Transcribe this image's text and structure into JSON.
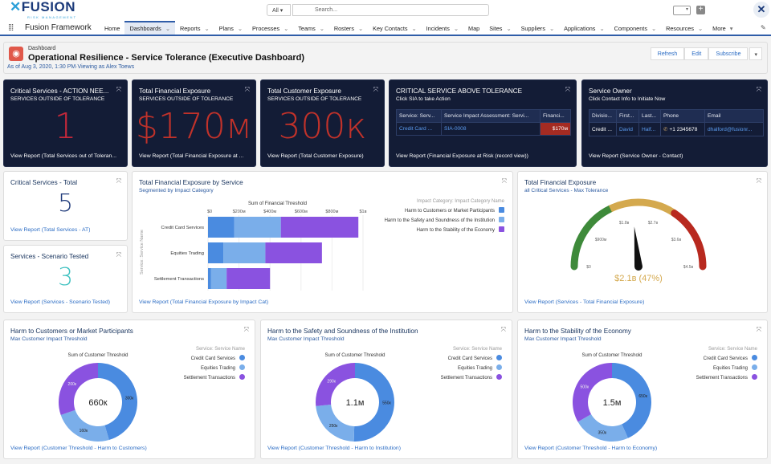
{
  "header": {
    "logo_text": "FUSION",
    "logo_tagline": "RISK MANAGEMENT",
    "search_scope": "All",
    "search_placeholder": "Search...",
    "app_name": "Fusion Framework",
    "nav_items": [
      {
        "label": "Home",
        "chevron": false
      },
      {
        "label": "Dashboards",
        "chevron": true,
        "active": true
      },
      {
        "label": "Reports",
        "chevron": true
      },
      {
        "label": "Plans",
        "chevron": true
      },
      {
        "label": "Processes",
        "chevron": true
      },
      {
        "label": "Teams",
        "chevron": true
      },
      {
        "label": "Rosters",
        "chevron": true
      },
      {
        "label": "Key Contacts",
        "chevron": true
      },
      {
        "label": "Incidents",
        "chevron": true
      },
      {
        "label": "Map",
        "chevron": false
      },
      {
        "label": "Sites",
        "chevron": true
      },
      {
        "label": "Suppliers",
        "chevron": true
      },
      {
        "label": "Applications",
        "chevron": true
      },
      {
        "label": "Components",
        "chevron": true
      },
      {
        "label": "Resources",
        "chevron": true
      },
      {
        "label": "More",
        "chevron": true
      }
    ]
  },
  "dashboard": {
    "kicker": "Dashboard",
    "title": "Operational Resilience - Service Tolerance (Executive Dashboard)",
    "as_of": "As of Aug 3, 2020, 1:30 PM·Viewing as Alex Toews",
    "buttons": {
      "refresh": "Refresh",
      "edit": "Edit",
      "subscribe": "Subscribe"
    }
  },
  "colors": {
    "c1": "#4a8be0",
    "c2": "#7aaeea",
    "c3": "#8a52e0",
    "alert_red": "#c2322a",
    "green": "#3e8a3a",
    "yellow": "#d4a94e",
    "red": "#b8291f",
    "dark_card": "#131c36"
  },
  "cards": {
    "critical": {
      "title": "Critical Services - ACTION NEE...",
      "subtitle": "SERVICES OUTSIDE OF TOLERANCE",
      "value": "1",
      "link": "View Report (Total Services out of Toleran..."
    },
    "fin": {
      "title": "Total Financial Exposure",
      "subtitle": "SERVICES OUTSIDE OF TOLERANCE",
      "value": "$170м",
      "link": "View Report (Total Financial Exposure at ..."
    },
    "cust": {
      "title": "Total Customer Exposure",
      "subtitle": "SERVICES OUTSIDE OF TOLERANCE",
      "value": "300к",
      "link": "View Report (Total Customer Exposure)"
    },
    "above": {
      "title": "CRITICAL SERVICE ABOVE TOLERANCE",
      "subtitle": "Click SIA to take Action",
      "columns": [
        "Service: Serv...",
        "Service Impact Assessment: Servi...",
        "Financi..."
      ],
      "row": [
        "Credit Card ...",
        "SIA-0008",
        "$170м"
      ],
      "link": "View Report (Financial Exposure at Risk (record view))"
    },
    "owner": {
      "title": "Service Owner",
      "subtitle": "Click Contact Info to Initiate Now",
      "columns": [
        "Divisio...",
        "First...",
        "Last...",
        "Phone",
        "Email"
      ],
      "row": [
        "Credit ...",
        "David",
        "Half...",
        "+1 2345678",
        "dhalford@fusionr..."
      ],
      "link": "View Report (Service Owner - Contact)"
    },
    "total": {
      "title": "Critical Services - Total",
      "value": "5",
      "value_color": "#1f3a7a",
      "link": "View Report (Total Services - AT)"
    },
    "scenario": {
      "title": "Services - Scenario Tested",
      "value": "3",
      "value_color": "#3fc1c0",
      "link": "View Report (Services - Scenario Tested)"
    }
  },
  "chart_data": [
    {
      "type": "bar",
      "orientation": "horizontal",
      "stacked": true,
      "title": "Total Financial Exposure by Service",
      "subtitle": "Segmented by Impact Category",
      "xlabel": "Sum of Financial Threshold",
      "ylabel": "Service: Service Name",
      "x_ticks": [
        "$0",
        "$200м",
        "$400м",
        "$600м",
        "$800м",
        "$1в"
      ],
      "xlim": [
        0,
        1000
      ],
      "x_unit": "$M",
      "categories": [
        "Credit Card Services",
        "Equities Trading",
        "Settlement Transactions"
      ],
      "legend_title": "Impact Category: Impact Category Name",
      "legend_position": "right",
      "series": [
        {
          "name": "Harm to Customers or Market Participants",
          "values": [
            170,
            100,
            20
          ]
        },
        {
          "name": "Harm to the Safety and Soundness of the Institution",
          "values": [
            300,
            270,
            100
          ]
        },
        {
          "name": "Harm to the Stability of the Economy",
          "values": [
            500,
            365,
            280
          ]
        }
      ],
      "link": "View Report (Total Financial Exposure by Impact Cat)"
    },
    {
      "type": "gauge",
      "title": "Total Financial Exposure",
      "subtitle": "all Critical Services - Max Tolerance",
      "min": 0,
      "max": 4.5,
      "unit": "$B",
      "value": 2.1,
      "value_label": "$2.1в (47%)",
      "tick_labels": [
        "$0",
        "$900м",
        "$1.8в",
        "$2.7в",
        "$3.6в",
        "$4.5в"
      ],
      "bands": [
        {
          "to": 1.6,
          "color": "green"
        },
        {
          "to": 3.1,
          "color": "yellow"
        },
        {
          "to": 4.5,
          "color": "red"
        }
      ],
      "link": "View Report (Services - Total Financial Exposure)"
    },
    {
      "type": "donut",
      "title": "Harm to Customers or Market Participants",
      "subtitle": "Max Customer Impact Threshold",
      "chart_label": "Sum of Customer Threshold",
      "legend_title": "Service: Service Name",
      "categories": [
        "Credit Card Services",
        "Equities Trading",
        "Settlement Transactions"
      ],
      "values": [
        300,
        160,
        200
      ],
      "value_labels": [
        "300к",
        "160к",
        "200к"
      ],
      "total_label": "660к",
      "link": "View Report (Customer Threshold - Harm to Customers)"
    },
    {
      "type": "donut",
      "title": "Harm to the Safety and Soundness of the Institution",
      "subtitle": "Max Customer Impact Threshold",
      "chart_label": "Sum of Customer Threshold",
      "legend_title": "Service: Service Name",
      "categories": [
        "Credit Card Services",
        "Equities Trading",
        "Settlement Transactions"
      ],
      "values": [
        550,
        250,
        290
      ],
      "value_labels": [
        "550к",
        "250к",
        "290к"
      ],
      "total_label": "1.1м",
      "link": "View Report (Customer Threshold - Harm to Institution)"
    },
    {
      "type": "donut",
      "title": "Harm to the Stability of the Economy",
      "subtitle": "Max Customer Impact Threshold",
      "chart_label": "Sum of Customer Threshold",
      "legend_title": "Service: Service Name",
      "categories": [
        "Credit Card Services",
        "Equities Trading",
        "Settlement Transactions"
      ],
      "values": [
        650,
        350,
        500
      ],
      "value_labels": [
        "650к",
        "350к",
        "500к"
      ],
      "total_label": "1.5м",
      "link": "View Report (Customer Threshold - Harm to Economy)"
    }
  ]
}
